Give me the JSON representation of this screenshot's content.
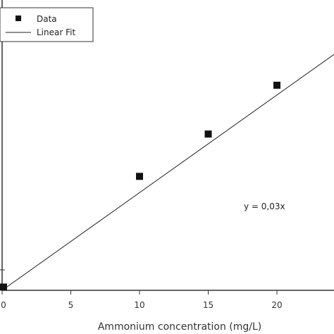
{
  "chart_data": {
    "type": "scatter",
    "title": "",
    "xlabel": "Ammonium concentration (mg/L)",
    "ylabel": "",
    "xlim": [
      0,
      25
    ],
    "ylim": [
      0,
      0.8
    ],
    "x_ticks": [
      0,
      5,
      10,
      15,
      20
    ],
    "x_tick_labels": [
      "0",
      "5",
      "10",
      "15",
      "20"
    ],
    "grid": false,
    "legend": {
      "position": "top-left",
      "entries": [
        {
          "label": "Data",
          "marker": "square"
        },
        {
          "label": "Linear Fit",
          "marker": "line"
        }
      ]
    },
    "series": [
      {
        "name": "Data",
        "type": "scatter",
        "x": [
          0,
          10,
          15,
          20
        ],
        "y": [
          0.01,
          0.35,
          0.48,
          0.63
        ]
      },
      {
        "name": "Linear Fit",
        "type": "line",
        "slope": 0.03,
        "x": [
          0,
          25
        ],
        "y": [
          0,
          0.75
        ]
      }
    ],
    "annotations": [
      {
        "text": "y = 0,03x"
      }
    ],
    "colors": {
      "data": "#111111",
      "fit": "#222222",
      "axis": "#333333"
    }
  }
}
